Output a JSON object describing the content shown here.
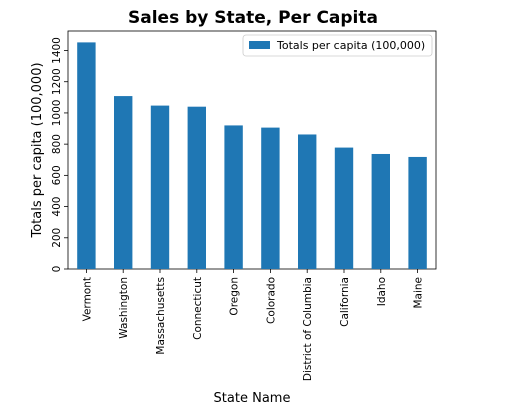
{
  "chart_data": {
    "type": "bar",
    "title": "Sales by State, Per Capita",
    "xlabel": "State Name",
    "ylabel": "Totals per capita (100,000)",
    "categories": [
      "Vermont",
      "Washington",
      "Massachusetts",
      "Connecticut",
      "Oregon",
      "Colorado",
      "District of Columbia",
      "California",
      "Idaho",
      "Maine"
    ],
    "series": [
      {
        "name": "Totals per capita (100,000)",
        "values": [
          1452,
          1108,
          1047,
          1040,
          920,
          906,
          862,
          778,
          737,
          718
        ],
        "color": "#1f77b4"
      }
    ],
    "yticks": [
      0,
      200,
      400,
      600,
      800,
      1000,
      1200,
      1400
    ],
    "ylim": [
      0,
      1525
    ],
    "legend": "top-right",
    "grid": false
  }
}
